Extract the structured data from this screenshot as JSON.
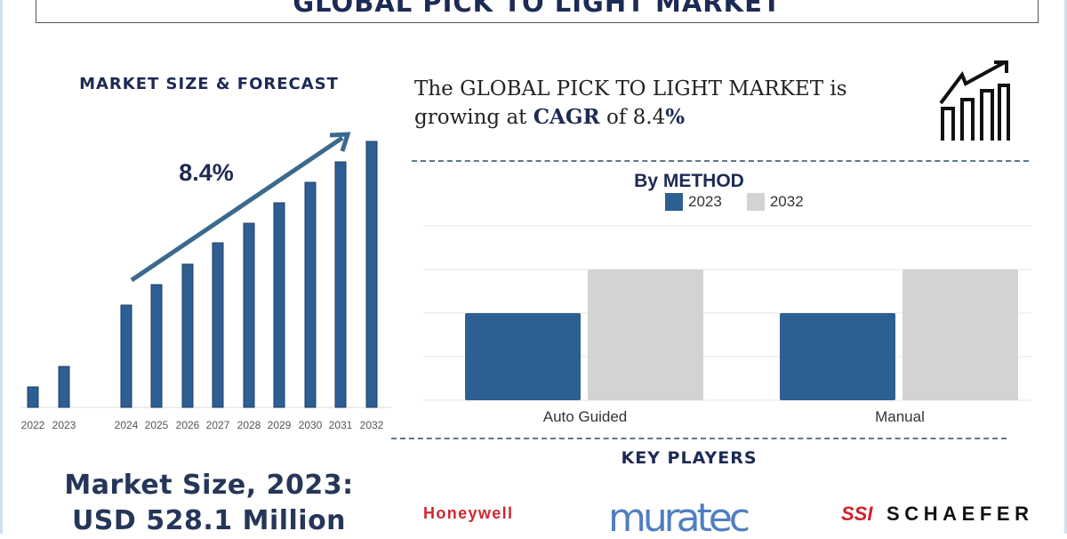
{
  "header": {
    "title": "GLOBAL PICK TO LIGHT MARKET"
  },
  "left_panel": {
    "heading": "MARKET SIZE & FORECAST",
    "cagr_label": "8.4%",
    "market_size_line1": "Market Size, 2023:",
    "market_size_line2": "USD 528.1 Million"
  },
  "growth_text": {
    "prefix": "The GLOBAL PICK TO LIGHT MARKET is growing at ",
    "cagr_word": "CAGR",
    "middle": " of 8.4",
    "suffix": "%"
  },
  "key_players": {
    "heading": "KEY PLAYERS",
    "logos": [
      "Honeywell",
      "muratec",
      "SSI SCHAEFER"
    ]
  },
  "icons": [
    "growth-chart-icon",
    "trend-arrow-icon"
  ],
  "colors": {
    "navy": "#1c2a55",
    "bar_blue": "#2d5f93",
    "gray": "#d3d3d3",
    "honeywell_red": "#d22630",
    "muratec_blue": "#4f7fc0",
    "ssi_red": "#d0202a"
  },
  "chart_data": [
    {
      "type": "bar",
      "title": "MARKET SIZE & FORECAST",
      "categories": [
        "2022",
        "2023",
        "2024",
        "2025",
        "2026",
        "2027",
        "2028",
        "2029",
        "2030",
        "2031",
        "2032"
      ],
      "values": [
        23,
        46,
        115,
        138,
        161,
        185,
        207,
        230,
        253,
        276,
        299
      ],
      "values_note": "relative index, no axis printed",
      "annotation": "8.4%",
      "grid": false
    },
    {
      "type": "bar",
      "title": "By METHOD",
      "categories": [
        "Auto Guided",
        "Manual"
      ],
      "series": [
        {
          "name": "2023",
          "values": [
            2,
            2
          ],
          "color": "#2d5f93"
        },
        {
          "name": "2032",
          "values": [
            3,
            3
          ],
          "color": "#d3d3d3"
        }
      ],
      "ylim": [
        0,
        4
      ],
      "grid": true,
      "legend": "top"
    }
  ]
}
